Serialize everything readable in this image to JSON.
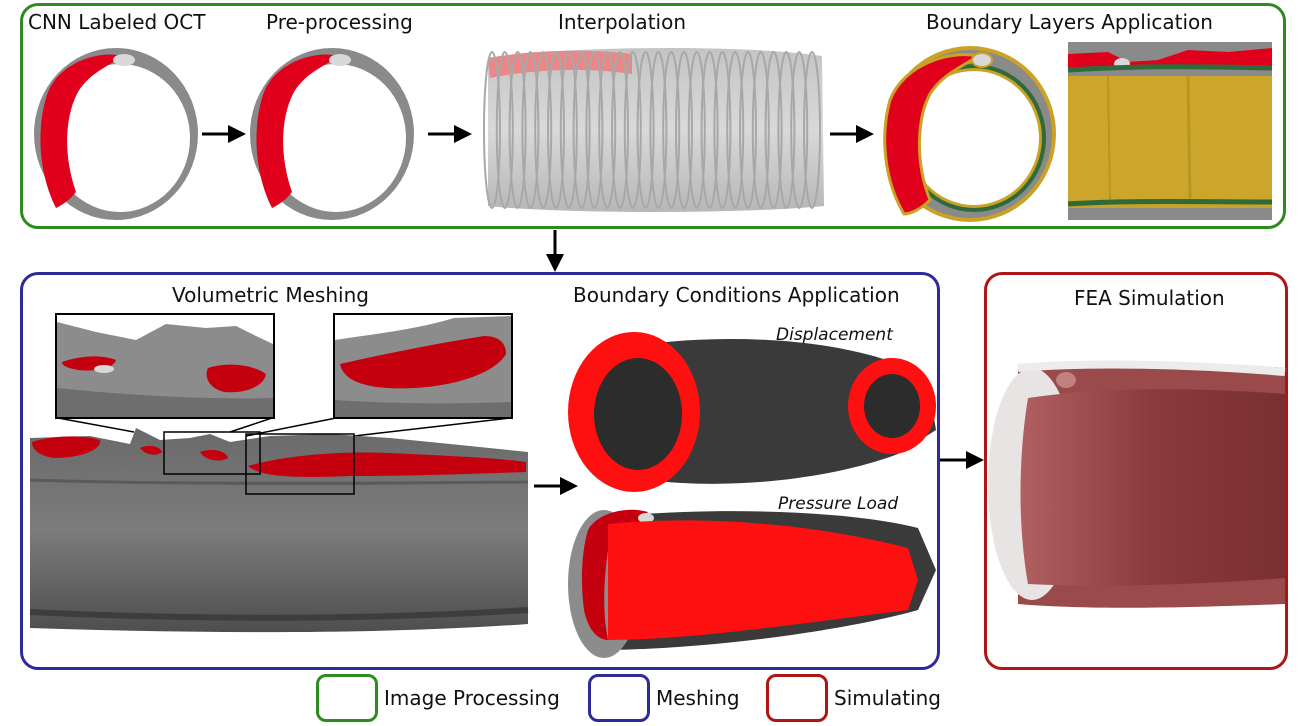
{
  "colors": {
    "image_processing": "#2e8b1f",
    "meshing": "#2d2b9a",
    "simulating": "#b01515",
    "plaque_red": "#e0001b",
    "tissue_gray": "#8a8a8a",
    "boundary_gold": "#c9a227",
    "boundary_green": "#2f6b3a",
    "mesh_dark": "#3a3a3a"
  },
  "top_panel": {
    "cnn_label": "CNN Labeled OCT",
    "preprocessing_label": "Pre-processing",
    "interpolation_label": "Interpolation",
    "boundary_layers_label": "Boundary Layers Application"
  },
  "meshing_panel": {
    "volumetric_label": "Volumetric Meshing",
    "boundary_conditions_label": "Boundary Conditions Application",
    "displacement_label": "Displacement",
    "pressure_label": "Pressure Load"
  },
  "simulation_panel": {
    "fea_label": "FEA Simulation"
  },
  "legend": {
    "image_processing": "Image Processing",
    "meshing": "Meshing",
    "simulating": "Simulating"
  }
}
